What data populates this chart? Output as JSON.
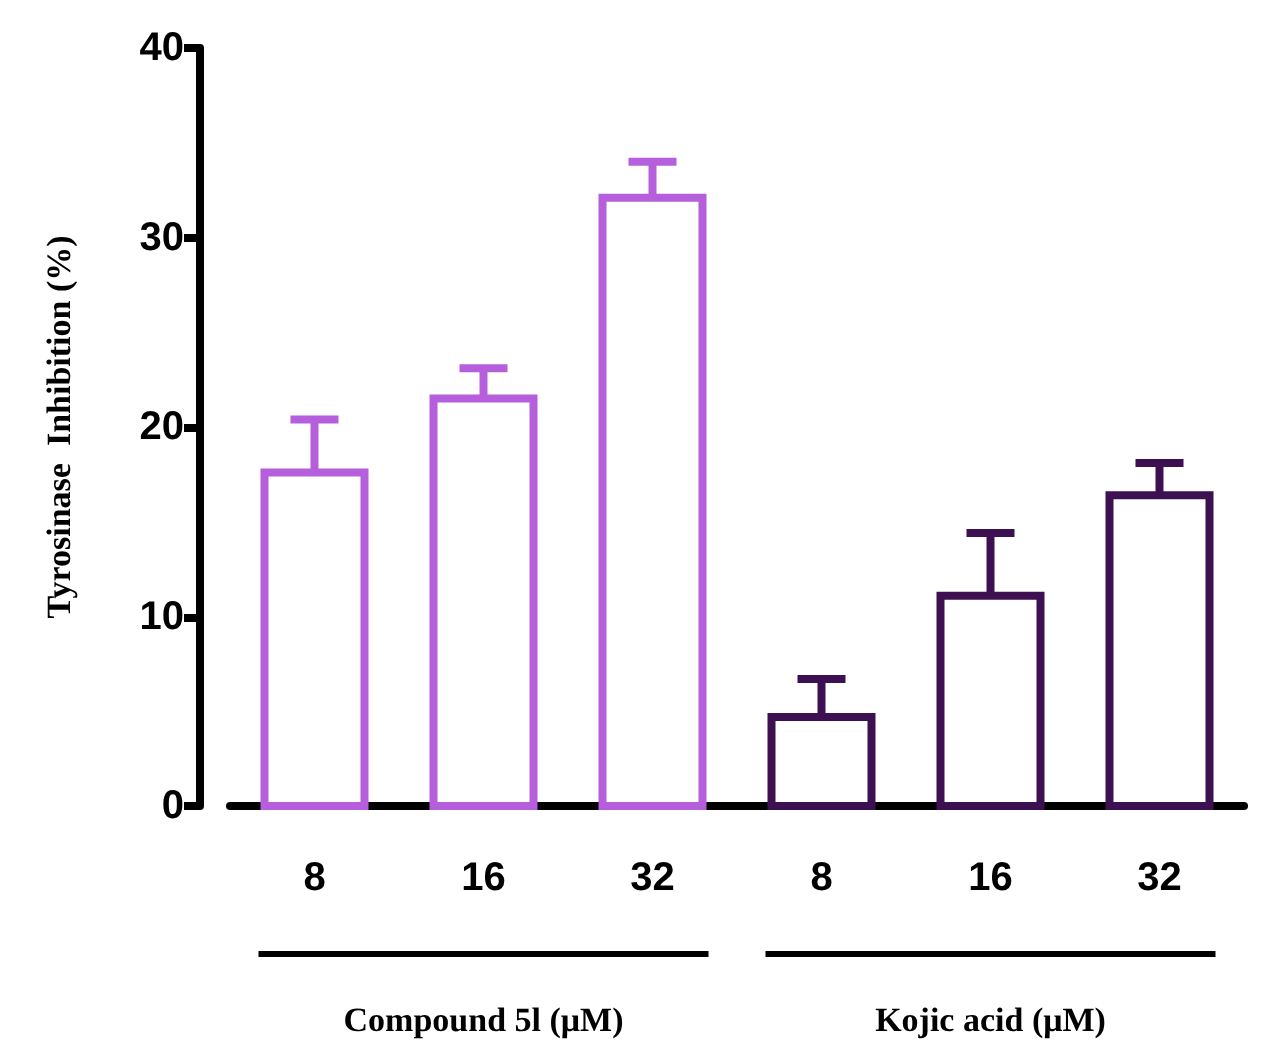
{
  "chart_data": {
    "type": "bar",
    "ylabel": "Tyrosinase  Inhibition (%)",
    "categories": [
      "8",
      "16",
      "32",
      "8",
      "16",
      "32"
    ],
    "values": [
      17.6,
      21.5,
      32.1,
      4.7,
      11.1,
      16.4
    ],
    "errors": [
      [
        17.6,
        20.4
      ],
      [
        21.5,
        23.1
      ],
      [
        32.1,
        34.0
      ],
      [
        4.7,
        6.7
      ],
      [
        11.1,
        14.4
      ],
      [
        16.4,
        18.1
      ]
    ],
    "colors": [
      "#b55fdc",
      "#b55fdc",
      "#b55fdc",
      "#3d1052",
      "#3d1052",
      "#3d1052"
    ],
    "ylim": [
      0,
      40
    ],
    "yticks": [
      0,
      10,
      20,
      30,
      40
    ],
    "grid": false,
    "annotations": [
      "Compound 5l (μM)",
      "Kojic acid (μM)"
    ]
  }
}
